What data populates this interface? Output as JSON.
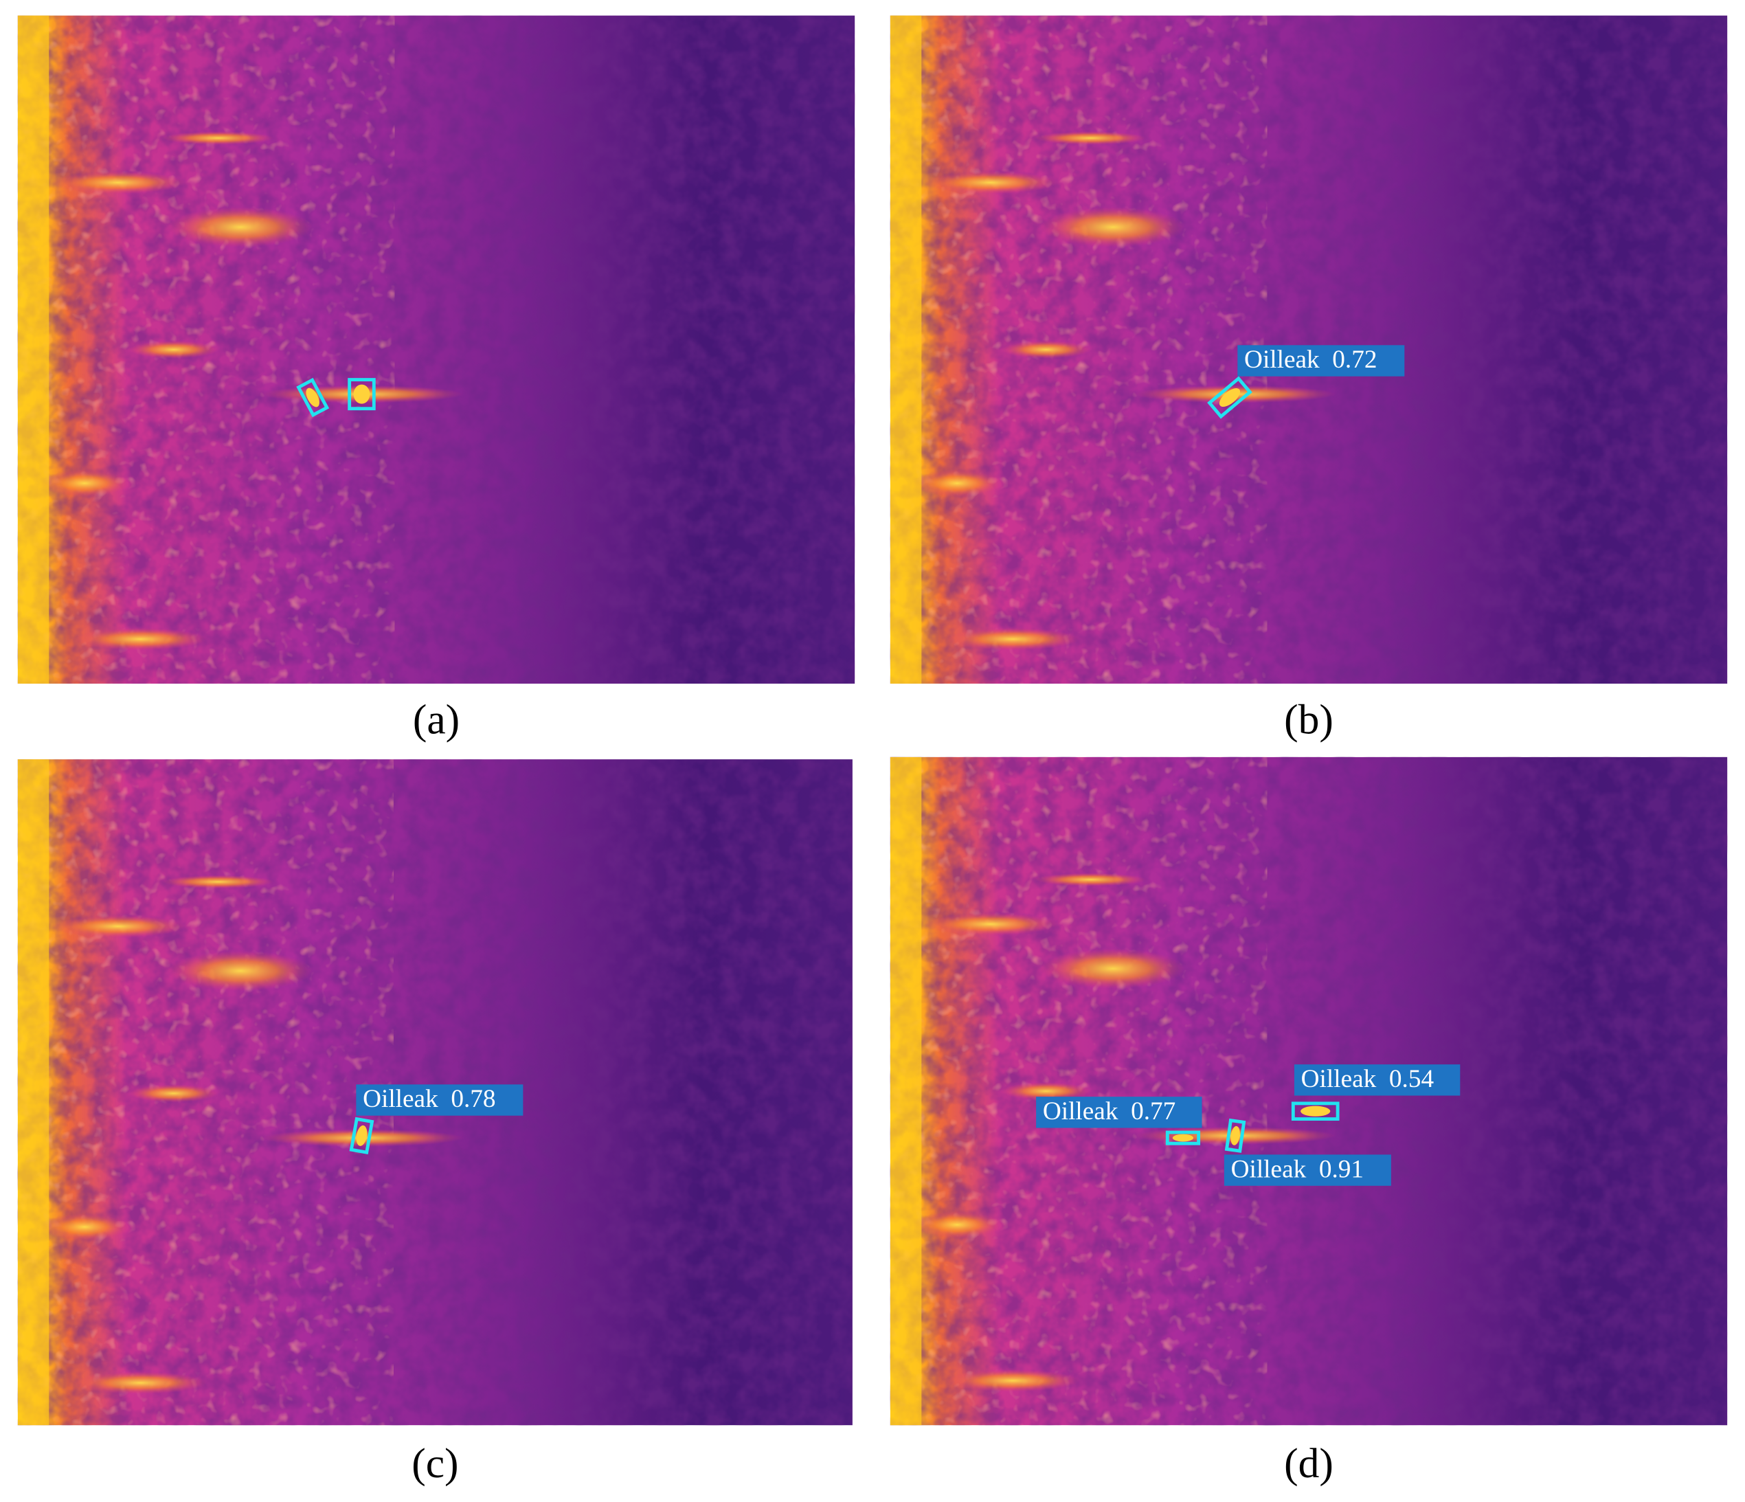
{
  "panels": [
    {
      "caption": "(a)",
      "detections": []
    },
    {
      "caption": "(b)",
      "detections": [
        {
          "label": "Oilleak  0.72"
        }
      ]
    },
    {
      "caption": "(c)",
      "detections": [
        {
          "label": "Oilleak  0.78"
        }
      ]
    },
    {
      "caption": "(d)",
      "detections": [
        {
          "label": "Oilleak  0.77"
        },
        {
          "label": "Oilleak  0.54"
        },
        {
          "label": "Oilleak  0.91"
        }
      ]
    }
  ]
}
